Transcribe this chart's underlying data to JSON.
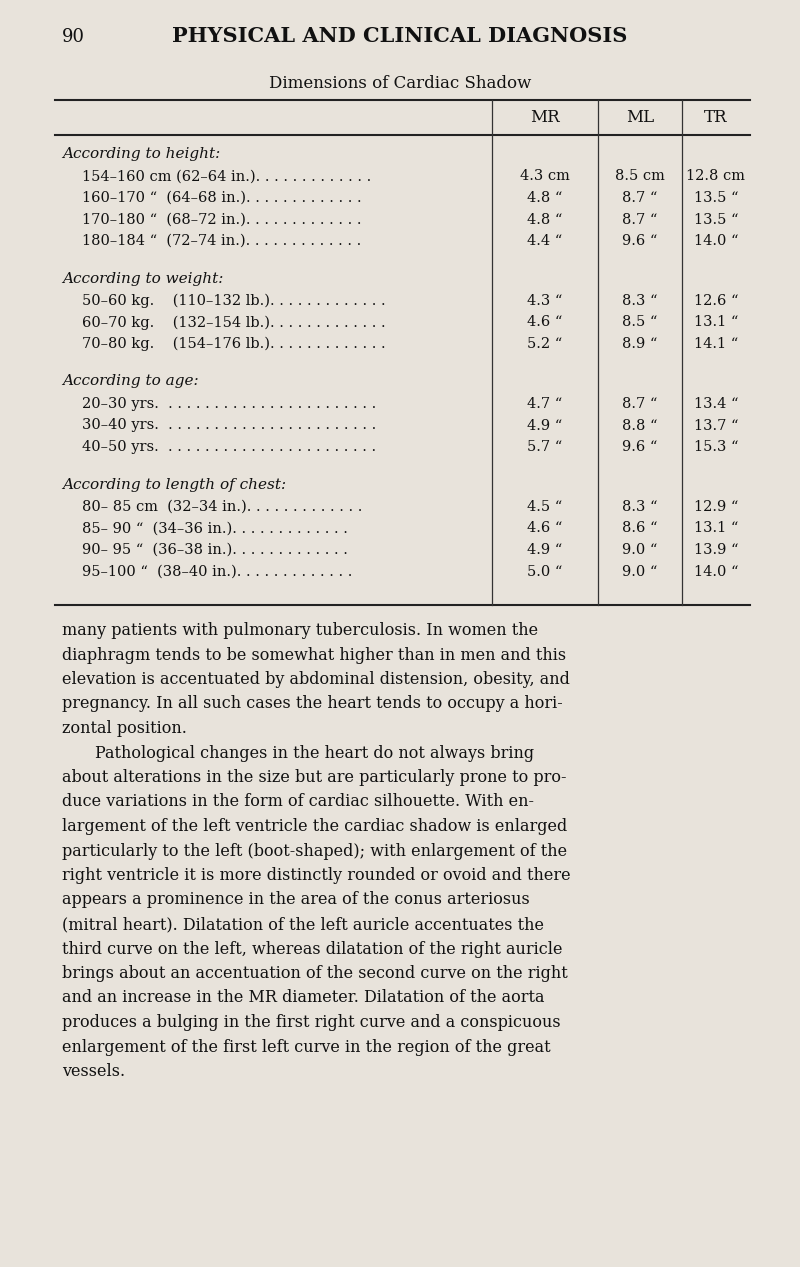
{
  "page_number": "90",
  "page_title": "PHYSICAL AND CLINICAL DIAGNOSIS",
  "table_title": "Dimensions of Cardiac Shadow",
  "col_headers": [
    "MR",
    "ML",
    "TR"
  ],
  "background_color": "#e8e3db",
  "sections": [
    {
      "header": "According to height:",
      "rows": [
        {
          "label": "154–160 cm (62–64 in.). . . . . . . . . . . . .",
          "MR": "4.3 cm",
          "ML": "8.5 cm",
          "TR": "12.8 cm"
        },
        {
          "label": "160–170 “  (64–68 in.). . . . . . . . . . . . .",
          "MR": "4.8 “",
          "ML": "8.7 “",
          "TR": "13.5 “"
        },
        {
          "label": "170–180 “  (68–72 in.). . . . . . . . . . . . .",
          "MR": "4.8 “",
          "ML": "8.7 “",
          "TR": "13.5 “"
        },
        {
          "label": "180–184 “  (72–74 in.). . . . . . . . . . . . .",
          "MR": "4.4 “",
          "ML": "9.6 “",
          "TR": "14.0 “"
        }
      ]
    },
    {
      "header": "According to weight:",
      "rows": [
        {
          "label": "50–60 kg.    (110–132 lb.). . . . . . . . . . . . .",
          "MR": "4.3 “",
          "ML": "8.3 “",
          "TR": "12.6 “"
        },
        {
          "label": "60–70 kg.    (132–154 lb.). . . . . . . . . . . . .",
          "MR": "4.6 “",
          "ML": "8.5 “",
          "TR": "13.1 “"
        },
        {
          "label": "70–80 kg.    (154–176 lb.). . . . . . . . . . . . .",
          "MR": "5.2 “",
          "ML": "8.9 “",
          "TR": "14.1 “"
        }
      ]
    },
    {
      "header": "According to age:",
      "rows": [
        {
          "label": "20–30 yrs.  . . . . . . . . . . . . . . . . . . . . . . .",
          "MR": "4.7 “",
          "ML": "8.7 “",
          "TR": "13.4 “"
        },
        {
          "label": "30–40 yrs.  . . . . . . . . . . . . . . . . . . . . . . .",
          "MR": "4.9 “",
          "ML": "8.8 “",
          "TR": "13.7 “"
        },
        {
          "label": "40–50 yrs.  . . . . . . . . . . . . . . . . . . . . . . .",
          "MR": "5.7 “",
          "ML": "9.6 “",
          "TR": "15.3 “"
        }
      ]
    },
    {
      "header": "According to length of chest:",
      "rows": [
        {
          "label": "80– 85 cm  (32–34 in.). . . . . . . . . . . . .",
          "MR": "4.5 “",
          "ML": "8.3 “",
          "TR": "12.9 “"
        },
        {
          "label": "85– 90 “  (34–36 in.). . . . . . . . . . . . .",
          "MR": "4.6 “",
          "ML": "8.6 “",
          "TR": "13.1 “"
        },
        {
          "label": "90– 95 “  (36–38 in.). . . . . . . . . . . . .",
          "MR": "4.9 “",
          "ML": "9.0 “",
          "TR": "13.9 “"
        },
        {
          "label": "95–100 “  (38–40 in.). . . . . . . . . . . . .",
          "MR": "5.0 “",
          "ML": "9.0 “",
          "TR": "14.0 “"
        }
      ]
    }
  ],
  "body_text": [
    {
      "text": "many patients with pulmonary tuberculosis. In women the",
      "indent": false
    },
    {
      "text": "diaphragm tends to be somewhat higher than in men and this",
      "indent": false
    },
    {
      "text": "elevation is accentuated by abdominal distension, obesity, and",
      "indent": false
    },
    {
      "text": "pregnancy. In all such cases the heart tends to occupy a hori-",
      "indent": false
    },
    {
      "text": "zontal position.",
      "indent": false
    },
    {
      "text": "Pathological changes in the heart do not always bring",
      "indent": true
    },
    {
      "text": "about alterations in the size but are particularly prone to pro-",
      "indent": false
    },
    {
      "text": "duce variations in the form of cardiac silhouette. With en-",
      "indent": false
    },
    {
      "text": "largement of the left ventricle the cardiac shadow is enlarged",
      "indent": false
    },
    {
      "text": "particularly to the left (boot-shaped); with enlargement of the",
      "indent": false
    },
    {
      "text": "right ventricle it is more distinctly rounded or ovoid and there",
      "indent": false
    },
    {
      "text": "appears a prominence in the area of the conus arteriosus",
      "indent": false
    },
    {
      "text": "(mitral heart). Dilatation of the left auricle accentuates the",
      "indent": false
    },
    {
      "text": "third curve on the left, whereas dilatation of the right auricle",
      "indent": false
    },
    {
      "text": "brings about an accentuation of the second curve on the right",
      "indent": false
    },
    {
      "text": "and an increase in the MR diameter. Dilatation of the aorta",
      "indent": false
    },
    {
      "text": "produces a bulging in the first right curve and a conspicuous",
      "indent": false
    },
    {
      "text": "enlargement of the first left curve in the region of the great",
      "indent": false
    },
    {
      "text": "vessels.",
      "indent": false
    }
  ]
}
